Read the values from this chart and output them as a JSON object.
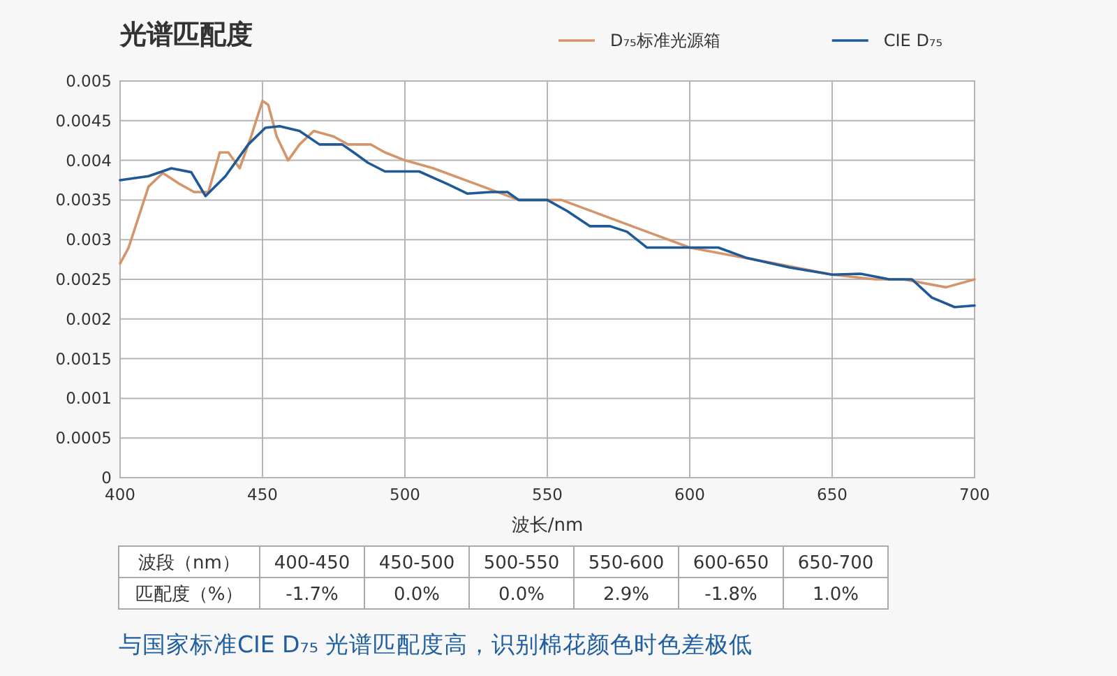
{
  "chart_data": [
    {
      "type": "line",
      "title": "光谱匹配度",
      "xlabel": "波长/nm",
      "xlim": [
        400,
        700
      ],
      "xticks": [
        400,
        450,
        500,
        550,
        600,
        650,
        700
      ],
      "ylim": [
        0,
        0.005
      ],
      "yticks": [
        0,
        0.0005,
        0.001,
        0.0015,
        0.002,
        0.0025,
        0.003,
        0.0035,
        0.004,
        0.0045,
        0.005
      ],
      "grid": true,
      "legend": "top",
      "marker": "none",
      "line_style": "solid",
      "series": [
        {
          "name": "D₇₅标准光源箱",
          "color": "#d4956a",
          "x": [
            400,
            403,
            410,
            415,
            421,
            426,
            431,
            435,
            438,
            442,
            446,
            450,
            452,
            455,
            459,
            463,
            468,
            475,
            480,
            488,
            493,
            500,
            510,
            525,
            540,
            555,
            570,
            585,
            600,
            615,
            630,
            650,
            665,
            675,
            690,
            700
          ],
          "values": [
            0.0027,
            0.0029,
            0.00367,
            0.00384,
            0.0037,
            0.0036,
            0.0036,
            0.0041,
            0.0041,
            0.0039,
            0.0043,
            0.00475,
            0.0047,
            0.0043,
            0.004,
            0.0042,
            0.00437,
            0.0043,
            0.0042,
            0.0042,
            0.0041,
            0.004,
            0.0039,
            0.0037,
            0.0035,
            0.0035,
            0.0033,
            0.0031,
            0.0029,
            0.0028,
            0.0027,
            0.00256,
            0.0025,
            0.0025,
            0.0024,
            0.0025
          ]
        },
        {
          "name": "CIE D₇₅",
          "color": "#1f5a96",
          "x": [
            400,
            410,
            418,
            425,
            430,
            437,
            445,
            451,
            456,
            463,
            470,
            478,
            482,
            487,
            493,
            505,
            515,
            522,
            530,
            536,
            540,
            550,
            557,
            565,
            572,
            578,
            585,
            600,
            610,
            620,
            635,
            650,
            660,
            670,
            678,
            685,
            693,
            700
          ],
          "values": [
            0.00375,
            0.0038,
            0.0039,
            0.00385,
            0.00355,
            0.0038,
            0.0042,
            0.00441,
            0.00443,
            0.00437,
            0.0042,
            0.0042,
            0.0041,
            0.00397,
            0.00386,
            0.00386,
            0.0037,
            0.00358,
            0.0036,
            0.0036,
            0.0035,
            0.0035,
            0.00336,
            0.00317,
            0.00317,
            0.0031,
            0.0029,
            0.0029,
            0.0029,
            0.00277,
            0.00265,
            0.00256,
            0.00257,
            0.0025,
            0.0025,
            0.00227,
            0.00215,
            0.00217
          ]
        }
      ]
    },
    {
      "type": "other",
      "categories": [
        "400-450",
        "450-500",
        "500-550",
        "550-600",
        "600-650",
        "650-700"
      ],
      "value_labels": [
        "-1.7%",
        "0.0%",
        "0.0%",
        "2.9%",
        "-1.8%",
        "1.0%"
      ],
      "annotations": [
        "波段（nm）",
        "匹配度（%）",
        "与国家标准CIE D₇₅ 光谱匹配度高，识别棉花颜色时色差极低"
      ]
    }
  ]
}
